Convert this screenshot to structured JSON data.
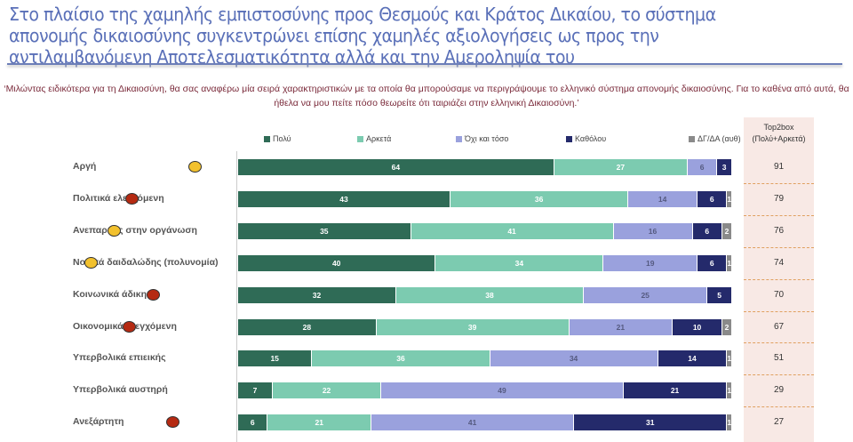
{
  "title": "Στο πλαίσιο της χαμηλής εμπιστοσύνης προς Θεσμούς και Κράτος Δικαίου, το σύστημα απονομής δικαιοσύνης συγκεντρώνει επίσης χαμηλές αξιολογήσεις ως προς την  αντιλαμβανόμενη Αποτελεσματικότητα αλλά και την Αμεροληψία του",
  "question": "‘Μιλώντας ειδικότερα για τη Δικαιοσύνη, θα σας αναφέρω μία σειρά χαρακτηριστικών με τα οποία θα μπορούσαμε να περιγράψουμε το ελληνικό σύστημα απονομής δικαιοσύνης. Για το καθένα από αυτά, θα ήθελα να μου πείτε πόσο θεωρείτε ότι ταιριάζει στην ελληνική Δικαιοσύνη.’",
  "chart_data": {
    "type": "bar",
    "orientation": "horizontal-stacked",
    "xlim": [
      0,
      100
    ],
    "legend_position": "top",
    "categories": [
      "Αργή",
      "Πολιτικά ελεγχόμενη",
      "Ανεπαρκής στην οργάνωση",
      "Νομικά δαιδαλώδης (πολυνομία)",
      "Κοινωνικά άδικη",
      "Οικονομικά ελεγχόμενη",
      "Υπερβολικά επιεικής",
      "Υπερβολικά αυστηρή",
      "Ανεξάρτητη"
    ],
    "series": [
      {
        "name": "Πολύ",
        "color": "#2f6b56",
        "label_color": "#ffffff",
        "values": [
          64,
          43,
          35,
          40,
          32,
          28,
          15,
          7,
          6
        ]
      },
      {
        "name": "Αρκετά",
        "color": "#7ccbb0",
        "label_color": "#ffffff",
        "values": [
          27,
          36,
          41,
          34,
          38,
          39,
          36,
          22,
          21
        ]
      },
      {
        "name": "Όχι και τόσο",
        "color": "#9aa1dd",
        "label_color": "#555a80",
        "values": [
          6,
          14,
          16,
          19,
          25,
          21,
          34,
          49,
          41
        ]
      },
      {
        "name": "Καθόλου",
        "color": "#242a6b",
        "label_color": "#ffffff",
        "values": [
          3,
          6,
          6,
          6,
          5,
          10,
          14,
          21,
          31
        ]
      },
      {
        "name": "ΔΓ/ΔΑ (αυθ)",
        "color": "#8a8a8a",
        "label_color": "#ffffff",
        "values": [
          0,
          1,
          2,
          1,
          0,
          2,
          1,
          1,
          1
        ]
      }
    ],
    "top2box": {
      "header_line1": "Top2box",
      "header_line2": "(Πολύ+Αρκετά)",
      "values": [
        91,
        79,
        76,
        74,
        70,
        67,
        51,
        29,
        27
      ]
    },
    "markers": [
      {
        "row": 0,
        "color": "#f2c12e"
      },
      {
        "row": 1,
        "color": "#b52a12"
      },
      {
        "row": 2,
        "color": "#f2c12e"
      },
      {
        "row": 3,
        "color": "#f2c12e"
      },
      {
        "row": 4,
        "color": "#b52a12"
      },
      {
        "row": 5,
        "color": "#b52a12"
      },
      {
        "row": 8,
        "color": "#b52a12"
      }
    ]
  }
}
